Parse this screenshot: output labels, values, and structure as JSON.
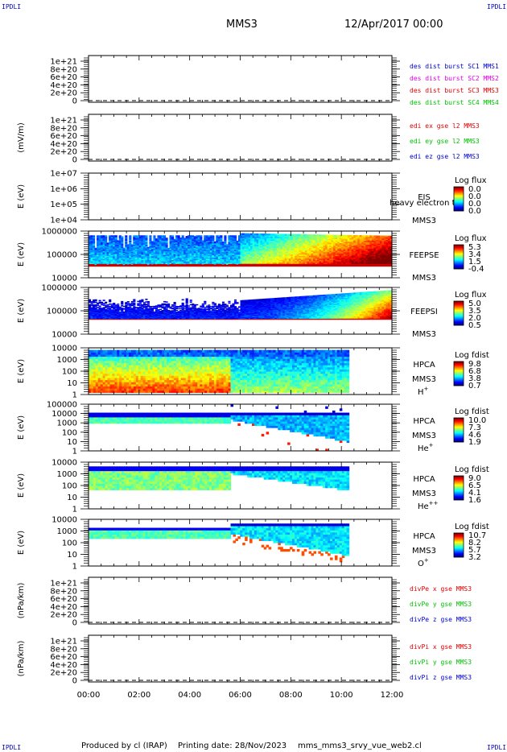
{
  "corners": {
    "tl": "IPDLI",
    "tr": "IPDLI",
    "bl": "IPDLI",
    "br": "IPDLI"
  },
  "header": {
    "spacecraft": "MMS3",
    "date": "12/Apr/2017 00:00"
  },
  "footer": {
    "produced_by": "Produced by cl (IRAP)",
    "printing_date": "Printing date: 28/Nov/2023",
    "script": "mms_mms3_srvy_vue_web2.cl"
  },
  "colors": {
    "red": "#e00000",
    "magenta": "#e000e0",
    "green": "#00c000",
    "blue": "#0000d0"
  },
  "time_axis": {
    "ticks": [
      "00:00",
      "02:00",
      "04:00",
      "06:00",
      "08:00",
      "10:00",
      "12:00"
    ],
    "range_hours": [
      0,
      12
    ],
    "data_end_hours": 10.3
  },
  "chart_data": [
    {
      "type": "line",
      "panel": "des_dist",
      "ylabel": "",
      "yticks": [
        "1e+21",
        "8e+20",
        "6e+20",
        "4e+20",
        "2e+20",
        "0"
      ],
      "series": [
        {
          "name": "des dist burst SC1 MMS1",
          "color": "#0000d0",
          "values": []
        },
        {
          "name": "des dist burst SC2 MMS2",
          "color": "#e000e0",
          "values": []
        },
        {
          "name": "des dist burst SC3 MMS3",
          "color": "#e00000",
          "values": []
        },
        {
          "name": "des dist burst SC4 MMS4",
          "color": "#00c000",
          "values": []
        }
      ]
    },
    {
      "type": "line",
      "panel": "edi_e",
      "ylabel": "(mV/m)",
      "yticks": [
        "1e+21",
        "8e+20",
        "6e+20",
        "4e+20",
        "2e+20",
        "0"
      ],
      "series": [
        {
          "name": "edi ex gse l2 MMS3",
          "color": "#e00000",
          "values": []
        },
        {
          "name": "edi ey gse l2 MMS3",
          "color": "#00c000",
          "values": []
        },
        {
          "name": "edi ez gse l2 MMS3",
          "color": "#0000d0",
          "values": []
        }
      ]
    },
    {
      "type": "heatmap",
      "panel": "eis",
      "ylabel": "E (eV)",
      "yticks": [
        "1e+07",
        "1e+06",
        "1e+05",
        "1e+04"
      ],
      "yrange_log10": [
        4,
        7
      ],
      "instrument": "EIS",
      "overlay": "heavy electron to",
      "spacecraft": "MMS3",
      "cbar_title": "Log flux",
      "cbar_ticks": [
        "0.0",
        "0.0",
        "0.0",
        "0.0"
      ]
    },
    {
      "type": "heatmap",
      "panel": "feepse",
      "ylabel": "E (eV)",
      "yticks": [
        "1000000",
        "100000",
        "10000"
      ],
      "yrange_log10": [
        4,
        6.2
      ],
      "instrument": "FEEPSE",
      "spacecraft": "MMS3",
      "cbar_title": "Log flux",
      "cbar_ticks": [
        "5.3",
        "3.4",
        "1.5",
        "-0.4"
      ],
      "end_hours": 12
    },
    {
      "type": "heatmap",
      "panel": "feepsi",
      "ylabel": "E (eV)",
      "yticks": [
        "1000000",
        "100000",
        "10000"
      ],
      "yrange_log10": [
        4,
        6.2
      ],
      "instrument": "FEEPSI",
      "spacecraft": "MMS3",
      "cbar_title": "Log flux",
      "cbar_ticks": [
        "5.0",
        "3.5",
        "2.0",
        "0.5"
      ],
      "end_hours": 12
    },
    {
      "type": "heatmap",
      "panel": "hpca_h",
      "ylabel": "E (eV)",
      "yticks": [
        "10000",
        "1000",
        "100",
        "10",
        "1"
      ],
      "yrange_log10": [
        0,
        4.5
      ],
      "instrument": "HPCA",
      "spacecraft": "MMS3",
      "species": "H",
      "charge": "+",
      "cbar_title": "Log fdist",
      "cbar_ticks": [
        "9.8",
        "6.8",
        "3.8",
        "0.7"
      ],
      "end_hours": 10.3
    },
    {
      "type": "heatmap",
      "panel": "hpca_he",
      "ylabel": "E (eV)",
      "yticks": [
        "100000",
        "10000",
        "1000",
        "100",
        "10",
        "1"
      ],
      "yrange_log10": [
        0,
        5
      ],
      "instrument": "HPCA",
      "spacecraft": "MMS3",
      "species": "He",
      "charge": "+",
      "cbar_title": "Log fdist",
      "cbar_ticks": [
        "10.0",
        "7.3",
        "4.6",
        "1.9"
      ],
      "end_hours": 10.3
    },
    {
      "type": "heatmap",
      "panel": "hpca_he2",
      "ylabel": "E (eV)",
      "yticks": [
        "10000",
        "1000",
        "100",
        "10",
        "1"
      ],
      "yrange_log10": [
        0,
        4.5
      ],
      "instrument": "HPCA",
      "spacecraft": "MMS3",
      "species": "He",
      "charge": "++",
      "cbar_title": "Log fdist",
      "cbar_ticks": [
        "9.0",
        "6.5",
        "4.1",
        "1.6"
      ],
      "end_hours": 10.3
    },
    {
      "type": "heatmap",
      "panel": "hpca_o",
      "ylabel": "E (eV)",
      "yticks": [
        "10000",
        "1000",
        "100",
        "10",
        "1"
      ],
      "yrange_log10": [
        0,
        4.5
      ],
      "instrument": "HPCA",
      "spacecraft": "MMS3",
      "species": "O",
      "charge": "+",
      "cbar_title": "Log fdist",
      "cbar_ticks": [
        "10.7",
        "8.2",
        "5.7",
        "3.2"
      ],
      "end_hours": 10.3
    },
    {
      "type": "line",
      "panel": "divpe",
      "ylabel": "(nPa/km)",
      "yticks": [
        "1e+21",
        "8e+20",
        "6e+20",
        "4e+20",
        "2e+20",
        "0"
      ],
      "series": [
        {
          "name": "divPe x gse MMS3",
          "color": "#e00000",
          "values": []
        },
        {
          "name": "divPe y gse MMS3",
          "color": "#00c000",
          "values": []
        },
        {
          "name": "divPe z gse MMS3",
          "color": "#0000d0",
          "values": []
        }
      ]
    },
    {
      "type": "line",
      "panel": "divpi",
      "ylabel": "(nPa/km)",
      "yticks": [
        "1e+21",
        "8e+20",
        "6e+20",
        "4e+20",
        "2e+20",
        "0"
      ],
      "series": [
        {
          "name": "divPi x gse MMS3",
          "color": "#e00000",
          "values": []
        },
        {
          "name": "divPi y gse MMS3",
          "color": "#00c000",
          "values": []
        },
        {
          "name": "divPi z gse MMS3",
          "color": "#0000d0",
          "values": []
        }
      ]
    }
  ]
}
